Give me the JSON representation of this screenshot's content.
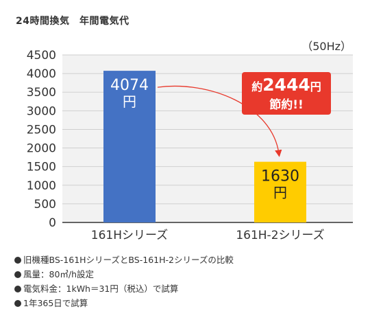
{
  "title": "24時間換気　年間電気代",
  "chart_data": {
    "type": "bar",
    "unit_note": "（50Hz）",
    "categories": [
      "161Hシリーズ",
      "161H-2シリーズ"
    ],
    "values": [
      4074,
      1630
    ],
    "bar_labels": [
      {
        "amount": "4074",
        "unit": "円"
      },
      {
        "amount": "1630",
        "unit": "円"
      }
    ],
    "bar_colors": [
      "#4472c4",
      "#ffcc00"
    ],
    "bar_label_colors": [
      "#ffffff",
      "#222222"
    ],
    "ylim": [
      0,
      4500
    ],
    "yticks": [
      0,
      500,
      1000,
      1500,
      2000,
      2500,
      3000,
      3500,
      4000,
      4500
    ],
    "grid": true,
    "savings_callout": {
      "prefix": "約",
      "amount": "2444",
      "unit": "円",
      "line2": "節約!!",
      "color": "#e8392c"
    },
    "arrow_color": "#e8392c"
  },
  "notes": [
    "旧機種BS-161HシリーズとBS-161H-2シリーズの比較",
    "風量：80㎥/h設定",
    "電気料金：1kWh＝31円（税込）で試算",
    "1年365日で試算"
  ]
}
